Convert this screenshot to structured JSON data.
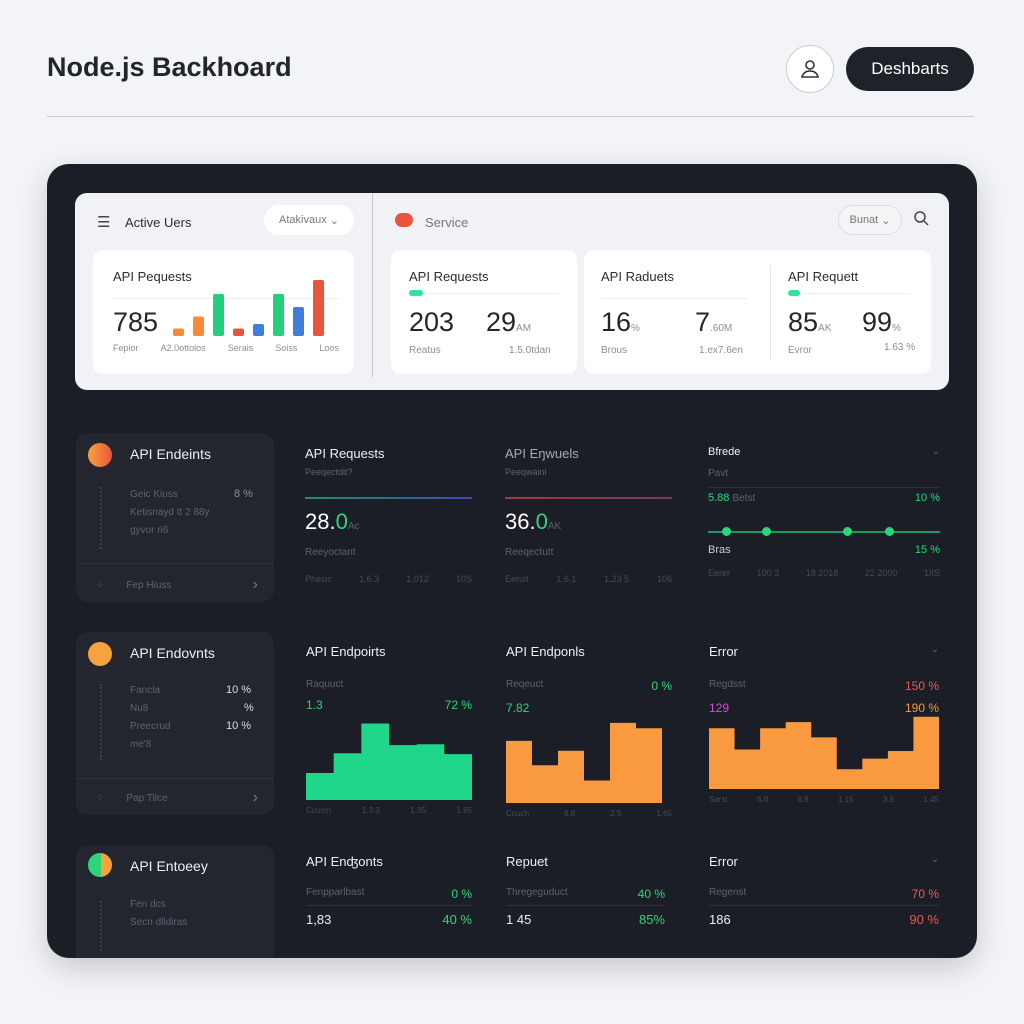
{
  "header": {
    "title": "Node.js Backhoard",
    "button": "Deshbarts"
  },
  "top": {
    "menu_label": "Active Uers",
    "dropdown": "Atakivaux",
    "service_label": "Service",
    "service_dropdown": "Bunat",
    "card1": {
      "title": "API Pequests",
      "value": "785",
      "labels": [
        "Fepior",
        "A2.0ottolos",
        "Serais",
        "Soiss",
        "Loos"
      ]
    },
    "card2": {
      "title": "API Requests",
      "v1": "203",
      "v2": "29",
      "v2_unit": "AM",
      "foot1": "Reatus",
      "foot2": "1.5.0tdan"
    },
    "card3": {
      "title": "API Raduets",
      "v1": "16",
      "v1_unit": "%",
      "v2": "7",
      "v2_unit": ".60M",
      "foot1": "Brous",
      "foot2": "1.ex7.6en"
    },
    "card4": {
      "title": "API Requett",
      "v1": "85",
      "v1_unit": "AK",
      "v2": "99",
      "v2_unit": "%",
      "foot1": "Evror",
      "foot2": "1.63 %"
    }
  },
  "row1": {
    "side": {
      "title": "API Endeints",
      "items": [
        {
          "label": "Geic Kiuss",
          "value": "8 %"
        },
        {
          "label": "Ketisnayd tt 2 88y",
          "value": ""
        },
        {
          "label": "gyvor ri6",
          "value": ""
        }
      ],
      "footer": "Fep Hiuss"
    },
    "c1": {
      "title": "API Requests",
      "sub": "Peeqectdit?",
      "value": "28.",
      "value_green": "0",
      "unit": "Ac",
      "label": "Reeyoctant",
      "axis": [
        "Phesic",
        "1.6.3",
        "1.012",
        "10S"
      ]
    },
    "c2": {
      "title": "API Eŋwuels",
      "sub": "Peeqwaini",
      "value": "36.",
      "value_green": "0",
      "unit": "AK",
      "label": "Reeqectutt",
      "axis": [
        "Eeruit",
        "1.6.1",
        "1.23 5",
        "106"
      ]
    },
    "c3": {
      "title": "Bfrede",
      "sub": "Pavt",
      "metric": "5.88",
      "metric_label": "Betst",
      "metric_pct": "10 %",
      "label2": "Bras",
      "pct2": "15 %",
      "axis": [
        "Eerer",
        "100 3",
        "18 2018",
        "22 2000",
        "1IIS"
      ]
    }
  },
  "row2": {
    "side": {
      "title": "API Endovnts",
      "items": [
        {
          "label": "Fancla",
          "value": "10 %"
        },
        {
          "label": "Nu8",
          "value": "%"
        },
        {
          "label": "Preecrud",
          "value": "10 %"
        },
        {
          "label": "me'8",
          "value": ""
        }
      ],
      "footer": "Pap Tilce"
    },
    "c1": {
      "title": "API Endpoirts",
      "sub": "Raquuct",
      "left": "1.3",
      "right": "72 %",
      "axis": [
        "Ccurcn",
        "1.3.3",
        "1.35",
        "1.65"
      ]
    },
    "c2": {
      "title": "API Endponls",
      "sub": "Reqeuct",
      "sub_right": "0 %",
      "left": "7.82",
      "axis": [
        "Couch",
        "6.8",
        "2.5",
        "1.65"
      ]
    },
    "c3": {
      "title": "Error",
      "sub": "Regdsst",
      "sub_right": "150 %",
      "left": "129",
      "right": "190 %",
      "axis": [
        "Sarst",
        "6.8",
        "6.8",
        "1.15",
        "3.5",
        "1.45"
      ]
    }
  },
  "row3": {
    "side": {
      "title": "API Entoeey",
      "items": [
        "Fen dcs",
        "Secn dlldiras"
      ]
    },
    "c1": {
      "title": "API Enʤonts",
      "sub": "Fenpparlbast",
      "sub_right": "0 %",
      "left": "1,83",
      "right": "40 %"
    },
    "c2": {
      "title": "Repuet",
      "sub": "Thregeguduct",
      "sub_right": "40 %",
      "left": "1 45",
      "right": "85%"
    },
    "c3": {
      "title": "Error",
      "sub": "Regenst",
      "sub_right": "70 %",
      "left": "186",
      "right": "90 %"
    }
  },
  "chart_data": [
    {
      "type": "bar",
      "title": "API Pequests",
      "values": [
        20,
        52,
        112,
        20,
        32,
        112,
        77,
        149
      ],
      "colors": [
        "#f58a3a",
        "#f58a3a",
        "#22d07a",
        "#e8553f",
        "#3f7fd9",
        "#22d07a",
        "#3f7fd9",
        "#e8553f"
      ]
    },
    {
      "type": "area",
      "title": "API Endpoirts",
      "values": [
        30,
        52,
        85,
        61,
        62,
        51
      ],
      "color": "#1fd68a",
      "ylim": [
        0,
        100
      ]
    },
    {
      "type": "area",
      "title": "API Endponls",
      "values": [
        69,
        42,
        58,
        25,
        89,
        83
      ],
      "color": "#f99a41",
      "ylim": [
        0,
        100
      ]
    },
    {
      "type": "area",
      "title": "Error",
      "values": [
        80,
        52,
        80,
        88,
        68,
        26,
        40,
        50,
        95
      ],
      "color": "#f99a41",
      "ylim": [
        0,
        100
      ]
    }
  ]
}
